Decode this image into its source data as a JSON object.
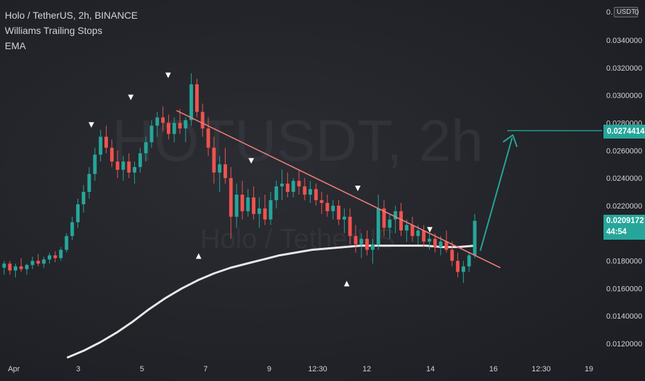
{
  "legend": {
    "title": "Holo / TetherUS, 2h, BINANCE",
    "indicator1": "Williams Trailing Stops",
    "indicator2": "EMA"
  },
  "watermark": {
    "symbol": "HOTUSDT, 2h",
    "name": "Holo / TetherUS"
  },
  "currency_badge": "USDT",
  "top_axis_fragment": "0.",
  "top_axis_fragment2": "0",
  "target_label": "0.0274414",
  "last_price": {
    "price": "0.0209172",
    "countdown": "44:54"
  },
  "colors": {
    "up": "#26a69a",
    "down": "#ef5350",
    "trendline": "#f07c7c",
    "ema": "#e8e8e8",
    "arrow": "#26a69a",
    "text": "#d1d4dc"
  },
  "chart_data": {
    "type": "candlestick",
    "y_axis": {
      "ticks": [
        "0.0340000",
        "0.0320000",
        "0.0300000",
        "0.0280000",
        "0.0260000",
        "0.0240000",
        "0.0220000",
        "0.0200000",
        "0.0180000",
        "0.0160000",
        "0.0140000",
        "0.0120000"
      ],
      "ylim": [
        0.0107,
        0.0363
      ]
    },
    "x_axis": {
      "ticks": [
        "Apr",
        "3",
        "5",
        "7",
        "9",
        "12:30",
        "12",
        "14",
        "16",
        "12:30",
        "19"
      ]
    },
    "candles_ohlc": [
      [
        0.0175,
        0.018,
        0.017,
        0.0178
      ],
      [
        0.0178,
        0.018,
        0.017,
        0.0173
      ],
      [
        0.0173,
        0.0178,
        0.0168,
        0.0176
      ],
      [
        0.0176,
        0.0182,
        0.0172,
        0.0174
      ],
      [
        0.0174,
        0.0178,
        0.017,
        0.0177
      ],
      [
        0.0177,
        0.0183,
        0.0174,
        0.018
      ],
      [
        0.018,
        0.0185,
        0.0176,
        0.0178
      ],
      [
        0.0178,
        0.0183,
        0.0175,
        0.0181
      ],
      [
        0.0181,
        0.0186,
        0.0178,
        0.0184
      ],
      [
        0.0184,
        0.0187,
        0.0179,
        0.0182
      ],
      [
        0.0182,
        0.019,
        0.018,
        0.0188
      ],
      [
        0.0188,
        0.02,
        0.0186,
        0.0198
      ],
      [
        0.0198,
        0.0212,
        0.0195,
        0.0208
      ],
      [
        0.0208,
        0.0225,
        0.0204,
        0.0221
      ],
      [
        0.0221,
        0.0235,
        0.0215,
        0.023
      ],
      [
        0.023,
        0.0248,
        0.0225,
        0.0243
      ],
      [
        0.0243,
        0.0262,
        0.0238,
        0.0257
      ],
      [
        0.0257,
        0.0275,
        0.0252,
        0.027
      ],
      [
        0.027,
        0.0278,
        0.0258,
        0.0262
      ],
      [
        0.0262,
        0.0268,
        0.0248,
        0.0252
      ],
      [
        0.0252,
        0.026,
        0.024,
        0.0246
      ],
      [
        0.0246,
        0.0256,
        0.0238,
        0.0252
      ],
      [
        0.0252,
        0.0258,
        0.024,
        0.0244
      ],
      [
        0.0244,
        0.0252,
        0.0236,
        0.0248
      ],
      [
        0.0248,
        0.0262,
        0.0244,
        0.0258
      ],
      [
        0.0258,
        0.027,
        0.0252,
        0.0266
      ],
      [
        0.0266,
        0.0282,
        0.0262,
        0.0278
      ],
      [
        0.0278,
        0.0288,
        0.027,
        0.0284
      ],
      [
        0.0284,
        0.0292,
        0.0274,
        0.028
      ],
      [
        0.028,
        0.0286,
        0.0268,
        0.0272
      ],
      [
        0.0272,
        0.0284,
        0.0266,
        0.028
      ],
      [
        0.028,
        0.029,
        0.0272,
        0.0276
      ],
      [
        0.0276,
        0.0284,
        0.0266,
        0.0282
      ],
      [
        0.0282,
        0.0316,
        0.0278,
        0.0308
      ],
      [
        0.0308,
        0.0312,
        0.0284,
        0.0288
      ],
      [
        0.0288,
        0.0294,
        0.027,
        0.0276
      ],
      [
        0.0276,
        0.0284,
        0.0256,
        0.0262
      ],
      [
        0.0262,
        0.027,
        0.0236,
        0.0244
      ],
      [
        0.0244,
        0.0256,
        0.023,
        0.025
      ],
      [
        0.025,
        0.0262,
        0.0236,
        0.024
      ],
      [
        0.024,
        0.0248,
        0.0196,
        0.0212
      ],
      [
        0.0212,
        0.0236,
        0.0204,
        0.0228
      ],
      [
        0.0228,
        0.0238,
        0.021,
        0.0216
      ],
      [
        0.0216,
        0.0232,
        0.0212,
        0.0226
      ],
      [
        0.0226,
        0.0234,
        0.021,
        0.0214
      ],
      [
        0.0214,
        0.0226,
        0.0204,
        0.0218
      ],
      [
        0.0218,
        0.0228,
        0.0206,
        0.021
      ],
      [
        0.021,
        0.023,
        0.0206,
        0.0224
      ],
      [
        0.0224,
        0.0238,
        0.0218,
        0.0234
      ],
      [
        0.0234,
        0.0246,
        0.0224,
        0.0236
      ],
      [
        0.0236,
        0.0244,
        0.0226,
        0.023
      ],
      [
        0.023,
        0.024,
        0.0226,
        0.0238
      ],
      [
        0.0238,
        0.0246,
        0.0228,
        0.0234
      ],
      [
        0.0234,
        0.024,
        0.0224,
        0.0228
      ],
      [
        0.0228,
        0.0238,
        0.0222,
        0.0232
      ],
      [
        0.0232,
        0.0236,
        0.022,
        0.0224
      ],
      [
        0.0224,
        0.023,
        0.0214,
        0.0222
      ],
      [
        0.0222,
        0.0228,
        0.0212,
        0.0216
      ],
      [
        0.0216,
        0.0224,
        0.021,
        0.022
      ],
      [
        0.022,
        0.0224,
        0.0206,
        0.021
      ],
      [
        0.021,
        0.0218,
        0.02,
        0.0212
      ],
      [
        0.0212,
        0.0218,
        0.0192,
        0.0198
      ],
      [
        0.0198,
        0.0206,
        0.0186,
        0.0192
      ],
      [
        0.0192,
        0.02,
        0.0182,
        0.0196
      ],
      [
        0.0196,
        0.0202,
        0.0184,
        0.0188
      ],
      [
        0.0188,
        0.0196,
        0.0178,
        0.0192
      ],
      [
        0.0192,
        0.0228,
        0.0188,
        0.0218
      ],
      [
        0.0218,
        0.0224,
        0.0198,
        0.0204
      ],
      [
        0.0204,
        0.0214,
        0.0196,
        0.021
      ],
      [
        0.021,
        0.022,
        0.02,
        0.0216
      ],
      [
        0.0216,
        0.0222,
        0.0198,
        0.0202
      ],
      [
        0.0202,
        0.021,
        0.0194,
        0.0206
      ],
      [
        0.0206,
        0.0212,
        0.0194,
        0.0198
      ],
      [
        0.0198,
        0.0206,
        0.0192,
        0.0202
      ],
      [
        0.0202,
        0.0206,
        0.019,
        0.0194
      ],
      [
        0.0194,
        0.02,
        0.0188,
        0.0196
      ],
      [
        0.0196,
        0.02,
        0.0186,
        0.019
      ],
      [
        0.019,
        0.0198,
        0.0184,
        0.0194
      ],
      [
        0.0194,
        0.0202,
        0.0186,
        0.0188
      ],
      [
        0.0188,
        0.0194,
        0.0176,
        0.018
      ],
      [
        0.018,
        0.0186,
        0.0168,
        0.0172
      ],
      [
        0.0172,
        0.018,
        0.0164,
        0.0176
      ],
      [
        0.0176,
        0.0186,
        0.0172,
        0.0184
      ],
      [
        0.0184,
        0.0214,
        0.0182,
        0.0209
      ]
    ],
    "ema_series": [
      0.011,
      0.0115,
      0.0121,
      0.0128,
      0.0136,
      0.0145,
      0.0153,
      0.016,
      0.0166,
      0.0171,
      0.0175,
      0.0178,
      0.0181,
      0.0184,
      0.0186,
      0.0188,
      0.0189,
      0.019,
      0.0191,
      0.0191,
      0.0191,
      0.0191,
      0.0191,
      0.019,
      0.019,
      0.0191
    ],
    "trendline": [
      [
        0.0289,
        "start"
      ],
      [
        0.0175,
        "end"
      ]
    ],
    "markers_down": [
      0.0278,
      0.0298,
      0.0314,
      0.0252,
      0.0232,
      0.0202
    ],
    "markers_up": [
      0.0184,
      0.0164
    ]
  }
}
